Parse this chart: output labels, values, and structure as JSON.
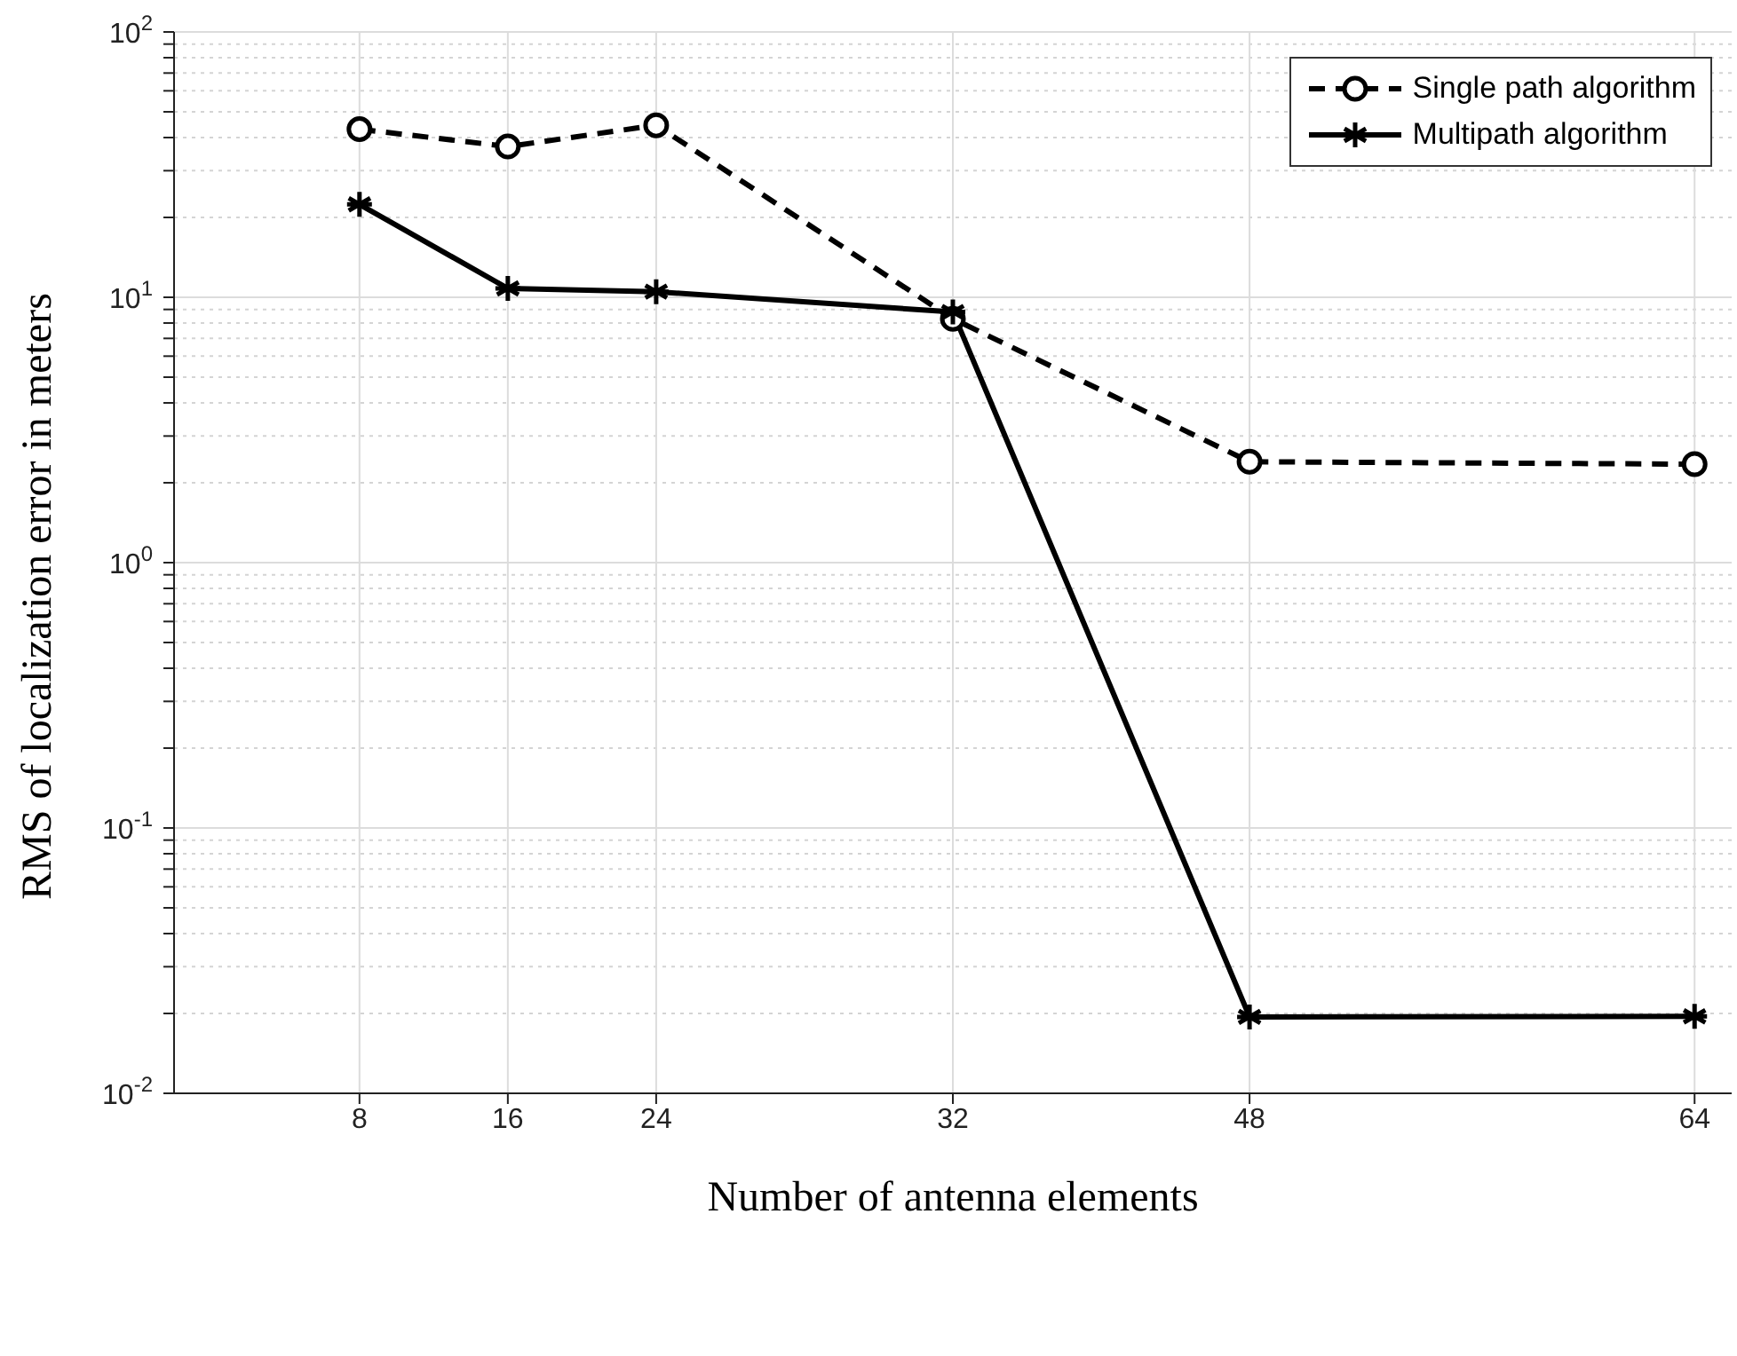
{
  "chart_data": {
    "type": "line",
    "xlabel": "Number of antenna elements",
    "ylabel": "RMS of localization error in meters",
    "categories": [
      "8",
      "16",
      "24",
      null,
      "32",
      null,
      "48",
      null,
      null,
      "64"
    ],
    "series": [
      {
        "name": "Single path algorithm",
        "color": "#000000",
        "line_style": "dashed",
        "marker": "circle",
        "values": [
          43,
          37,
          44.5,
          null,
          8.3,
          null,
          2.4,
          null,
          null,
          2.35
        ]
      },
      {
        "name": "Multipath algorithm",
        "color": "#000000",
        "line_style": "solid",
        "marker": "cross",
        "values": [
          22.4,
          10.8,
          10.5,
          null,
          8.8,
          null,
          0.0194,
          null,
          null,
          0.0195
        ]
      }
    ],
    "log": "y",
    "ylim": [
      0.01,
      100
    ],
    "yticks": [
      {
        "value": 0.01,
        "label": "10$^{-2}$"
      },
      {
        "value": 0.02,
        "label": null
      },
      {
        "value": 0.03,
        "label": null
      },
      {
        "value": 0.04,
        "label": null
      },
      {
        "value": 0.05,
        "label": null
      },
      {
        "value": 0.06,
        "label": null
      },
      {
        "value": 0.07,
        "label": null
      },
      {
        "value": 0.08,
        "label": null
      },
      {
        "value": 0.09,
        "label": null
      },
      {
        "value": 0.1,
        "label": "10$^{-1}$"
      },
      {
        "value": 0.2,
        "label": null
      },
      {
        "value": 0.3,
        "label": null
      },
      {
        "value": 0.4,
        "label": null
      },
      {
        "value": 0.5,
        "label": null
      },
      {
        "value": 0.6,
        "label": null
      },
      {
        "value": 0.7,
        "label": null
      },
      {
        "value": 0.8,
        "label": null
      },
      {
        "value": 0.9,
        "label": null
      },
      {
        "value": 1,
        "label": "10$^{0}$"
      },
      {
        "value": 2,
        "label": null
      },
      {
        "value": 3,
        "label": null
      },
      {
        "value": 4,
        "label": null
      },
      {
        "value": 5,
        "label": null
      },
      {
        "value": 6,
        "label": null
      },
      {
        "value": 7,
        "label": null
      },
      {
        "value": 8,
        "label": null
      },
      {
        "value": 9,
        "label": null
      },
      {
        "value": 10,
        "label": "10$^{1}$"
      },
      {
        "value": 20,
        "label": null
      },
      {
        "value": 30,
        "label": null
      },
      {
        "value": 40,
        "label": null
      },
      {
        "value": 50,
        "label": null
      },
      {
        "value": 60,
        "label": null
      },
      {
        "value": 70,
        "label": null
      },
      {
        "value": 80,
        "label": null
      },
      {
        "value": 90,
        "label": null
      },
      {
        "value": 100,
        "label": "10$^{2}$"
      }
    ],
    "grid": true,
    "legend": "top right"
  }
}
